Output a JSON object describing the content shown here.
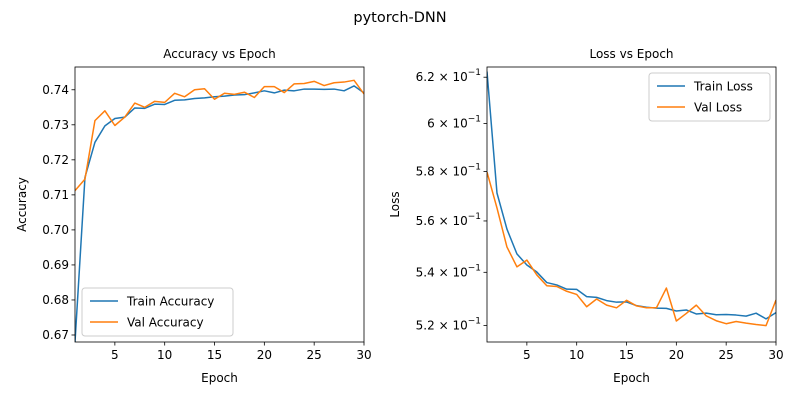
{
  "suptitle": "pytorch-DNN",
  "chart_data": [
    {
      "type": "line",
      "title": "Accuracy vs Epoch",
      "xlabel": "Epoch",
      "ylabel": "Accuracy",
      "xlim": [
        1,
        30
      ],
      "ylim": [
        0.668,
        0.7465
      ],
      "xticks": [
        5,
        10,
        15,
        20,
        25,
        30
      ],
      "yticks": [
        0.67,
        0.68,
        0.69,
        0.7,
        0.71,
        0.72,
        0.73,
        0.74
      ],
      "ytick_labels": [
        "0.67",
        "0.68",
        "0.69",
        "0.70",
        "0.71",
        "0.72",
        "0.73",
        "0.74"
      ],
      "yscale": "linear",
      "grid": false,
      "legend_position": "lower-left",
      "x": [
        1,
        2,
        3,
        4,
        5,
        6,
        7,
        8,
        9,
        10,
        11,
        12,
        13,
        14,
        15,
        16,
        17,
        18,
        19,
        20,
        21,
        22,
        23,
        24,
        25,
        26,
        27,
        28,
        29,
        30
      ],
      "series": [
        {
          "name": "Train Accuracy",
          "color": "#1f77b4",
          "values": [
            0.668,
            0.715,
            0.725,
            0.7297,
            0.7318,
            0.7322,
            0.7348,
            0.7347,
            0.7359,
            0.7358,
            0.737,
            0.7371,
            0.7375,
            0.7377,
            0.738,
            0.7382,
            0.7385,
            0.7386,
            0.7391,
            0.7397,
            0.7391,
            0.7399,
            0.7397,
            0.7402,
            0.7402,
            0.7401,
            0.7402,
            0.7397,
            0.7411,
            0.7391
          ]
        },
        {
          "name": "Val Accuracy",
          "color": "#ff7f0e",
          "values": [
            0.7112,
            0.7145,
            0.7312,
            0.734,
            0.7298,
            0.7322,
            0.7362,
            0.735,
            0.7367,
            0.7364,
            0.739,
            0.738,
            0.74,
            0.7403,
            0.7373,
            0.739,
            0.7387,
            0.7393,
            0.7378,
            0.7409,
            0.7409,
            0.7392,
            0.7417,
            0.7418,
            0.7424,
            0.7412,
            0.742,
            0.7422,
            0.7427,
            0.7388
          ]
        }
      ]
    },
    {
      "type": "line",
      "title": "Loss vs Epoch",
      "xlabel": "Epoch",
      "ylabel": "Loss",
      "xlim": [
        1,
        30
      ],
      "ylim": [
        0.514,
        0.6245
      ],
      "xticks": [
        5,
        10,
        15,
        20,
        25,
        30
      ],
      "yticks": [
        0.52,
        0.54,
        0.56,
        0.58,
        0.6,
        0.62
      ],
      "ytick_labels": [
        {
          "mantissa": "5.2",
          "exponent": "−1"
        },
        {
          "mantissa": "5.4",
          "exponent": "−1"
        },
        {
          "mantissa": "5.6",
          "exponent": "−1"
        },
        {
          "mantissa": "5.8",
          "exponent": "−1"
        },
        {
          "mantissa": "6",
          "exponent": "−1"
        },
        {
          "mantissa": "6.2",
          "exponent": "−1"
        }
      ],
      "tick_base": "10",
      "tick_times": "×",
      "yscale": "log",
      "grid": false,
      "legend_position": "upper-right",
      "x": [
        1,
        2,
        3,
        4,
        5,
        6,
        7,
        8,
        9,
        10,
        11,
        12,
        13,
        14,
        15,
        16,
        17,
        18,
        19,
        20,
        21,
        22,
        23,
        24,
        25,
        26,
        27,
        28,
        29,
        30
      ],
      "series": [
        {
          "name": "Train Loss",
          "color": "#1f77b4",
          "values": [
            0.6225,
            0.5712,
            0.5568,
            0.5471,
            0.5428,
            0.5401,
            0.5361,
            0.5352,
            0.5336,
            0.5335,
            0.5308,
            0.5305,
            0.5293,
            0.5287,
            0.5288,
            0.5274,
            0.5268,
            0.5265,
            0.5264,
            0.5254,
            0.5258,
            0.5243,
            0.5246,
            0.524,
            0.5241,
            0.5239,
            0.5235,
            0.5246,
            0.5225,
            0.5248
          ]
        },
        {
          "name": "Val Loss",
          "color": "#ff7f0e",
          "values": [
            0.5797,
            0.5652,
            0.5498,
            0.5421,
            0.5447,
            0.539,
            0.5349,
            0.5346,
            0.5328,
            0.5316,
            0.527,
            0.5299,
            0.5276,
            0.5266,
            0.5294,
            0.5273,
            0.5266,
            0.5266,
            0.534,
            0.5217,
            0.5245,
            0.5276,
            0.5236,
            0.5218,
            0.5207,
            0.5215,
            0.5209,
            0.5204,
            0.52,
            0.5295
          ]
        }
      ]
    }
  ]
}
